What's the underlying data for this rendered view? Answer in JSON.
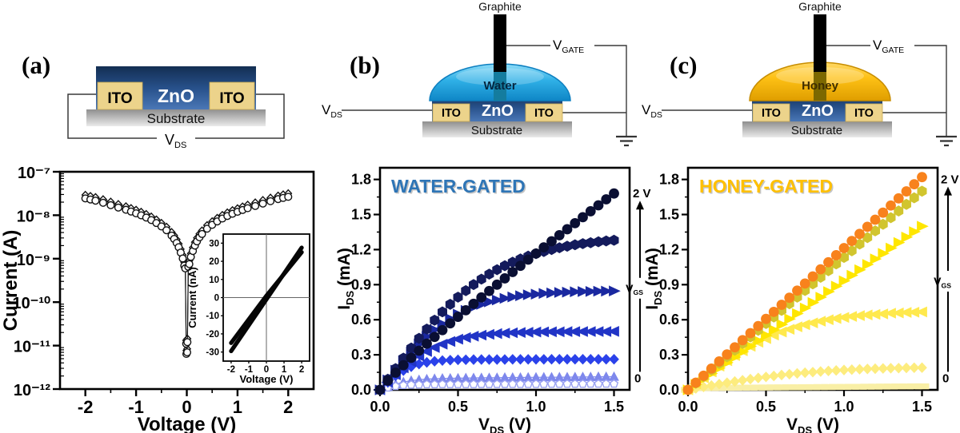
{
  "panels": {
    "a": {
      "tag": "(a)",
      "schematic": {
        "zno": "ZnO",
        "ito_left": "ITO",
        "ito_right": "ITO",
        "substrate": "Substrate",
        "vds": {
          "main": "V",
          "sub": "DS"
        }
      }
    },
    "b": {
      "tag": "(b)",
      "schematic": {
        "graphite": "Graphite",
        "liquid": "Water",
        "zno": "ZnO",
        "ito_left": "ITO",
        "ito_right": "ITO",
        "substrate": "Substrate",
        "vds": {
          "main": "V",
          "sub": "DS"
        },
        "vgate": {
          "main": "V",
          "sub": "GATE"
        }
      }
    },
    "c": {
      "tag": "(c)",
      "schematic": {
        "graphite": "Graphite",
        "liquid": "Honey",
        "zno": "ZnO",
        "ito_left": "ITO",
        "ito_right": "ITO",
        "substrate": "Substrate",
        "vds": {
          "main": "V",
          "sub": "DS"
        },
        "vgate": {
          "main": "V",
          "sub": "GATE"
        }
      }
    }
  },
  "colors": {
    "water_drop": "#29A9E1",
    "honey_drop": "#FEC115",
    "water_title": "#2E75B6",
    "honey_title": "#FFC000"
  },
  "chart_data": [
    {
      "type": "scatter",
      "name": "two-terminal-iv",
      "xlabel": "Voltage (V)",
      "ylabel": "Current (A)",
      "xlim": [
        -2.5,
        2.5
      ],
      "xticks": [
        -2,
        -1,
        0,
        1,
        2
      ],
      "xticks_minor": [
        -1.5,
        -0.5,
        0.5,
        1.5
      ],
      "y_decades": [
        -7,
        -8,
        -9,
        -10,
        -11,
        -12
      ],
      "ytick_labels": [
        "10⁻⁷",
        "10⁻⁸",
        "10⁻⁹",
        "10⁻¹⁰",
        "10⁻¹¹",
        "10⁻¹²"
      ],
      "v_abs": [
        0.008,
        0.012,
        0.03,
        0.05,
        0.08,
        0.12,
        0.16,
        0.2,
        0.25,
        0.3,
        0.4,
        0.5,
        0.6,
        0.7,
        0.8,
        0.9,
        1.0,
        1.1,
        1.2,
        1.35,
        1.5,
        1.65,
        1.8,
        1.9,
        2.0
      ],
      "i": [
        7e-12,
        1.2e-11,
        6.5e-10,
        7.5e-10,
        1.1e-09,
        1.5e-09,
        2e-09,
        2.5e-09,
        3.1e-09,
        3.7e-09,
        4.9e-09,
        6e-09,
        7.2e-09,
        8.4e-09,
        9.6e-09,
        1.08e-08,
        1.2e-08,
        1.32e-08,
        1.45e-08,
        1.63e-08,
        1.85e-08,
        2.1e-08,
        2.35e-08,
        2.5e-08,
        2.65e-08
      ],
      "neg_branch_scale": 0.92,
      "series": [
        {
          "name": "sweep-diamonds",
          "marker": "diamond",
          "scale": 1.2
        },
        {
          "name": "sweep-circles",
          "marker": "circle",
          "scale": 1.0
        }
      ],
      "inset": {
        "xlabel": "Voltage (V)",
        "ylabel": "Current (nA)",
        "xlim": [
          -2.45,
          2.45
        ],
        "ylim": [
          -35,
          35
        ],
        "xticks": [
          -2,
          -1,
          0,
          1,
          2
        ],
        "yticks": [
          -30,
          -20,
          -10,
          0,
          10,
          20,
          30
        ],
        "lines": [
          {
            "x": [
              -2,
              0,
              2
            ],
            "y": [
              -29.5,
              -1,
              27.5
            ]
          },
          {
            "x": [
              -2,
              0,
              2
            ],
            "y": [
              -25,
              1,
              25
            ]
          }
        ]
      }
    },
    {
      "type": "scatter",
      "title": "WATER-GATED",
      "title_color": "#2E75B6",
      "xlabel": {
        "main": "V",
        "sub": "DS",
        "rest": " (V)"
      },
      "ylabel": {
        "main": "I",
        "sub": "DS",
        "rest": " (mA)"
      },
      "xlim": [
        0,
        1.6
      ],
      "ylim": [
        0,
        1.9
      ],
      "xticks": [
        0,
        0.5,
        1,
        1.5
      ],
      "xticks_minor": [
        0.25,
        0.75,
        1.25
      ],
      "yticks": [
        0,
        0.3,
        0.6,
        0.9,
        1.2,
        1.5,
        1.8
      ],
      "yticks_minor": [
        0.15,
        0.45,
        0.75,
        1.05,
        1.35,
        1.65
      ],
      "x": [
        0,
        0.05,
        0.1,
        0.15,
        0.2,
        0.25,
        0.3,
        0.35,
        0.4,
        0.45,
        0.5,
        0.55,
        0.6,
        0.65,
        0.7,
        0.75,
        0.8,
        0.85,
        0.9,
        0.95,
        1.0,
        1.05,
        1.1,
        1.15,
        1.2,
        1.25,
        1.3,
        1.35,
        1.4,
        1.45,
        1.5
      ],
      "series": [
        {
          "name": "water-vgs-max",
          "marker": "circle",
          "color": "#0a0f33",
          "values": [
            0,
            0.079,
            0.147,
            0.211,
            0.274,
            0.335,
            0.395,
            0.453,
            0.511,
            0.569,
            0.625,
            0.681,
            0.736,
            0.791,
            0.846,
            0.9,
            0.954,
            1.008,
            1.061,
            1.114,
            1.166,
            1.219,
            1.271,
            1.323,
            1.374,
            1.426,
            1.477,
            1.528,
            1.579,
            1.63,
            1.68
          ]
        },
        {
          "name": "water-vgs-2",
          "marker": "hexagon",
          "color": "#141b5c",
          "values": [
            0,
            0.091,
            0.182,
            0.271,
            0.358,
            0.441,
            0.52,
            0.596,
            0.667,
            0.732,
            0.793,
            0.849,
            0.901,
            0.947,
            0.99,
            1.028,
            1.062,
            1.092,
            1.12,
            1.144,
            1.165,
            1.184,
            1.201,
            1.216,
            1.229,
            1.241,
            1.251,
            1.259,
            1.267,
            1.274,
            1.28
          ]
        },
        {
          "name": "water-vgs-3",
          "marker": "tri-right",
          "color": "#1a28a0",
          "values": [
            0,
            0.085,
            0.168,
            0.248,
            0.323,
            0.393,
            0.456,
            0.514,
            0.564,
            0.609,
            0.647,
            0.68,
            0.709,
            0.732,
            0.753,
            0.769,
            0.783,
            0.795,
            0.805,
            0.813,
            0.819,
            0.825,
            0.829,
            0.833,
            0.836,
            0.839,
            0.841,
            0.842,
            0.844,
            0.845,
            0.846
          ]
        },
        {
          "name": "water-vgs-4",
          "marker": "tri-left",
          "color": "#2134c6",
          "values": [
            0,
            0.065,
            0.129,
            0.188,
            0.241,
            0.289,
            0.329,
            0.363,
            0.391,
            0.414,
            0.433,
            0.448,
            0.459,
            0.468,
            0.475,
            0.481,
            0.485,
            0.489,
            0.491,
            0.493,
            0.495,
            0.496,
            0.497,
            0.497,
            0.498,
            0.498,
            0.499,
            0.499,
            0.499,
            0.499,
            0.5
          ]
        },
        {
          "name": "water-vgs-5",
          "marker": "diamond",
          "color": "#2b42ea",
          "values": [
            0,
            0.064,
            0.12,
            0.165,
            0.198,
            0.221,
            0.235,
            0.245,
            0.251,
            0.254,
            0.257,
            0.258,
            0.259,
            0.26,
            0.26,
            0.26,
            0.26,
            0.261,
            0.261,
            0.261,
            0.261,
            0.261,
            0.262,
            0.262,
            0.262,
            0.262,
            0.262,
            0.262,
            0.262,
            0.262,
            0.262
          ]
        },
        {
          "name": "water-vgs-low",
          "marker": "pentagon",
          "color": "#9aa2f2",
          "open": true,
          "values": [
            0,
            0.018,
            0.031,
            0.039,
            0.043,
            0.044,
            0.046,
            0.046,
            0.047,
            0.047,
            0.047,
            0.047,
            0.047,
            0.048,
            0.048,
            0.048,
            0.048,
            0.049,
            0.049,
            0.049,
            0.049,
            0.049,
            0.05,
            0.05,
            0.05,
            0.05,
            0.05,
            0.051,
            0.051,
            0.051,
            0.051
          ]
        },
        {
          "name": "water-vgs-min",
          "marker": "tri-up",
          "color": "#7e88ec",
          "values": [
            0,
            0.026,
            0.049,
            0.067,
            0.079,
            0.086,
            0.092,
            0.095,
            0.098,
            0.099,
            0.1,
            0.101,
            0.102,
            0.103,
            0.103,
            0.104,
            0.105,
            0.106,
            0.106,
            0.107,
            0.107,
            0.108,
            0.108,
            0.109,
            0.109,
            0.11,
            0.111,
            0.111,
            0.112,
            0.112,
            0.113
          ]
        }
      ],
      "annotations": {
        "top_label": "2 V",
        "top_y": 1.68,
        "bottom_label": "0",
        "bottom_y": 0.1,
        "gate": {
          "main": "V",
          "sub": "GS"
        }
      }
    },
    {
      "type": "scatter",
      "title": "HONEY-GATED",
      "title_color": "#FFC000",
      "xlabel": {
        "main": "V",
        "sub": "DS",
        "rest": " (V)"
      },
      "ylabel": {
        "main": "I",
        "sub": "DS",
        "rest": " (mA)"
      },
      "xlim": [
        0,
        1.6
      ],
      "ylim": [
        0,
        1.9
      ],
      "xticks": [
        0,
        0.5,
        1,
        1.5
      ],
      "xticks_minor": [
        0.25,
        0.75,
        1.25
      ],
      "yticks": [
        0,
        0.3,
        0.6,
        0.9,
        1.2,
        1.5,
        1.8
      ],
      "yticks_minor": [
        0.15,
        0.45,
        0.75,
        1.05,
        1.35,
        1.65
      ],
      "x": [
        0,
        0.05,
        0.1,
        0.15,
        0.2,
        0.25,
        0.3,
        0.35,
        0.4,
        0.45,
        0.5,
        0.55,
        0.6,
        0.65,
        0.7,
        0.75,
        0.8,
        0.85,
        0.9,
        0.95,
        1.0,
        1.05,
        1.1,
        1.15,
        1.2,
        1.25,
        1.3,
        1.35,
        1.4,
        1.45,
        1.5
      ],
      "series": [
        {
          "name": "honey-vgs-max",
          "marker": "circle",
          "color": "#f8821c",
          "values": [
            0,
            0.061,
            0.121,
            0.182,
            0.243,
            0.303,
            0.364,
            0.425,
            0.485,
            0.546,
            0.607,
            0.667,
            0.728,
            0.788,
            0.849,
            0.91,
            0.97,
            1.031,
            1.092,
            1.152,
            1.213,
            1.274,
            1.334,
            1.395,
            1.456,
            1.516,
            1.577,
            1.638,
            1.698,
            1.759,
            1.82
          ]
        },
        {
          "name": "honey-vgs-2",
          "marker": "hexagon",
          "color": "#d1c52e",
          "values": [
            0,
            0.057,
            0.113,
            0.17,
            0.227,
            0.283,
            0.34,
            0.397,
            0.453,
            0.51,
            0.567,
            0.623,
            0.68,
            0.737,
            0.793,
            0.85,
            0.907,
            0.963,
            1.02,
            1.077,
            1.133,
            1.19,
            1.247,
            1.303,
            1.36,
            1.417,
            1.473,
            1.53,
            1.587,
            1.643,
            1.7
          ]
        },
        {
          "name": "honey-vgs-3",
          "marker": "tri-right",
          "color": "#ffe600",
          "values": [
            0,
            0.047,
            0.093,
            0.14,
            0.187,
            0.233,
            0.28,
            0.327,
            0.373,
            0.42,
            0.467,
            0.513,
            0.56,
            0.607,
            0.653,
            0.7,
            0.747,
            0.793,
            0.84,
            0.887,
            0.933,
            0.98,
            1.027,
            1.073,
            1.12,
            1.167,
            1.213,
            1.26,
            1.307,
            1.353,
            1.4
          ]
        },
        {
          "name": "honey-vgs-4",
          "marker": "tri-left",
          "color": "#ffe94d",
          "values": [
            0,
            0.052,
            0.104,
            0.154,
            0.203,
            0.249,
            0.293,
            0.334,
            0.373,
            0.408,
            0.439,
            0.469,
            0.495,
            0.518,
            0.539,
            0.557,
            0.573,
            0.587,
            0.6,
            0.61,
            0.62,
            0.628,
            0.635,
            0.641,
            0.646,
            0.65,
            0.656,
            0.658,
            0.662,
            0.664,
            0.667
          ]
        },
        {
          "name": "honey-vgs-5",
          "marker": "diamond",
          "color": "#fdec7e",
          "values": [
            0,
            0.012,
            0.025,
            0.037,
            0.049,
            0.061,
            0.072,
            0.082,
            0.092,
            0.102,
            0.111,
            0.119,
            0.127,
            0.134,
            0.141,
            0.147,
            0.152,
            0.157,
            0.162,
            0.166,
            0.17,
            0.173,
            0.176,
            0.179,
            0.181,
            0.183,
            0.185,
            0.186,
            0.188,
            0.189,
            0.19
          ]
        },
        {
          "name": "honey-vgs-min",
          "marker": "square",
          "color": "#f9efa6",
          "values": [
            0,
            0.016,
            0.016,
            0.017,
            0.017,
            0.018,
            0.018,
            0.019,
            0.019,
            0.02,
            0.02,
            0.021,
            0.021,
            0.022,
            0.022,
            0.023,
            0.023,
            0.024,
            0.024,
            0.025,
            0.025,
            0.026,
            0.026,
            0.027,
            0.027,
            0.028,
            0.028,
            0.029,
            0.029,
            0.03,
            0.03
          ]
        }
      ],
      "annotations": {
        "top_label": "2 V",
        "top_y": 1.8,
        "bottom_label": "0",
        "bottom_y": 0.1,
        "gate": {
          "main": "V",
          "sub": "GS"
        }
      }
    }
  ]
}
